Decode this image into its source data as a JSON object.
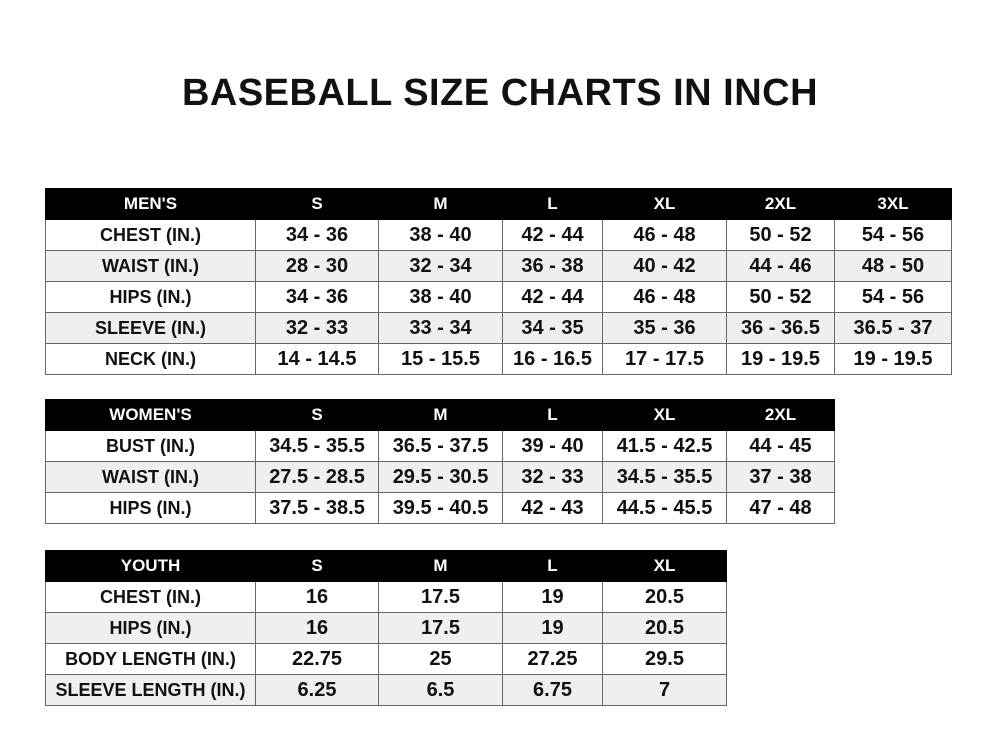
{
  "title": "BASEBALL SIZE CHARTS IN INCH",
  "men": {
    "header": [
      "MEN'S",
      "S",
      "M",
      "L",
      "XL",
      "2XL",
      "3XL"
    ],
    "rows": [
      [
        "CHEST (IN.)",
        "34 - 36",
        "38 - 40",
        "42 - 44",
        "46 - 48",
        "50 - 52",
        "54 - 56"
      ],
      [
        "WAIST (IN.)",
        "28 - 30",
        "32 - 34",
        "36 - 38",
        "40 - 42",
        "44 - 46",
        "48 - 50"
      ],
      [
        "HIPS (IN.)",
        "34 - 36",
        "38 - 40",
        "42 - 44",
        "46 - 48",
        "50 - 52",
        "54 - 56"
      ],
      [
        "SLEEVE (IN.)",
        "32 - 33",
        "33 - 34",
        "34 - 35",
        "35 - 36",
        "36 - 36.5",
        "36.5 - 37"
      ],
      [
        "NECK (IN.)",
        "14 - 14.5",
        "15 - 15.5",
        "16 - 16.5",
        "17 - 17.5",
        "19 - 19.5",
        "19 - 19.5"
      ]
    ]
  },
  "women": {
    "header": [
      "WOMEN'S",
      "S",
      "M",
      "L",
      "XL",
      "2XL"
    ],
    "rows": [
      [
        "BUST (IN.)",
        "34.5 - 35.5",
        "36.5 - 37.5",
        "39 - 40",
        "41.5 - 42.5",
        "44 - 45"
      ],
      [
        "WAIST (IN.)",
        "27.5 - 28.5",
        "29.5 - 30.5",
        "32 - 33",
        "34.5 - 35.5",
        "37 - 38"
      ],
      [
        "HIPS (IN.)",
        "37.5 - 38.5",
        "39.5 - 40.5",
        "42 - 43",
        "44.5 - 45.5",
        "47 - 48"
      ]
    ]
  },
  "youth": {
    "header": [
      "YOUTH",
      "S",
      "M",
      "L",
      "XL"
    ],
    "rows": [
      [
        "CHEST (IN.)",
        "16",
        "17.5",
        "19",
        "20.5"
      ],
      [
        "HIPS (IN.)",
        "16",
        "17.5",
        "19",
        "20.5"
      ],
      [
        "BODY LENGTH (IN.)",
        "22.75",
        "25",
        "27.25",
        "29.5"
      ],
      [
        "SLEEVE LENGTH (IN.)",
        "6.25",
        "6.5",
        "6.75",
        "7"
      ]
    ]
  }
}
